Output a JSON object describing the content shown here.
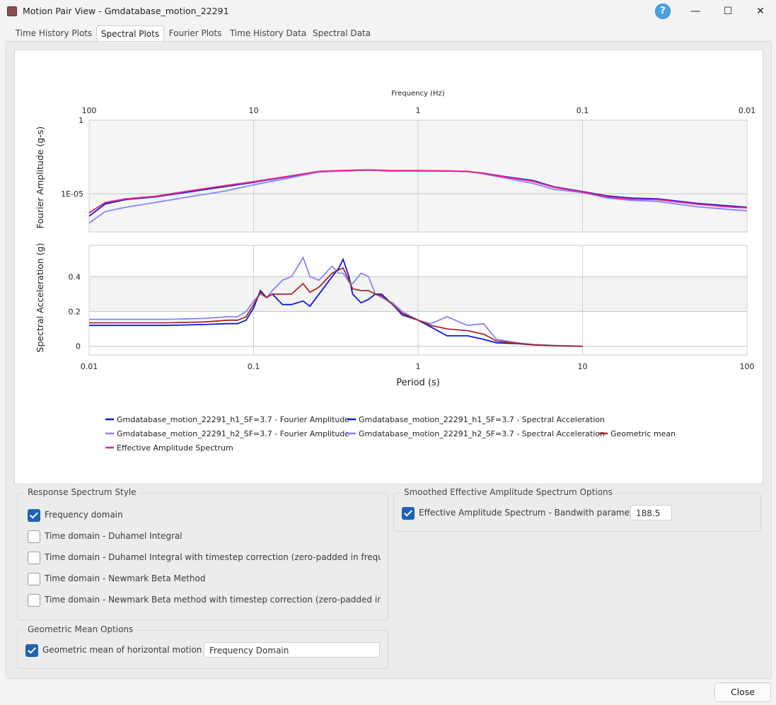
{
  "window": {
    "title": "Motion Pair View - Gmdatabase_motion_22291",
    "help": "?",
    "minimize": "—",
    "maximize": "☐",
    "close": "✕"
  },
  "tabs": [
    "Time History Plots",
    "Spectral Plots",
    "Fourier Plots",
    "Time History Data",
    "Spectral Data"
  ],
  "active_tab": "Spectral Plots",
  "chart_data": [
    {
      "type": "line",
      "xlabel": "Frequency (Hz)",
      "ylabel": "Fourier Amplitude (g-s)",
      "xscale": "log",
      "yscale": "log",
      "xlim": [
        100,
        0.01
      ],
      "x_ticks": [
        "100",
        "10",
        "1",
        "0.1",
        "0.01"
      ],
      "y_ticks": [
        "1",
        "1E-05"
      ],
      "series": [
        {
          "name": "Gmdatabase_motion_22291_h1_SF=3.7 - Fourier Amplitude",
          "color": "#0a1bd6",
          "x": [
            100,
            80,
            60,
            40,
            25,
            15,
            10,
            6,
            4,
            3,
            2,
            1.5,
            1,
            0.7,
            0.5,
            0.4,
            0.3,
            0.2,
            0.15,
            0.1,
            0.07,
            0.05,
            0.035,
            0.02,
            0.012,
            0.01
          ],
          "y": [
            3e-07,
            2e-06,
            4e-06,
            6e-06,
            1.3e-05,
            3e-05,
            6e-05,
            0.00015,
            0.0003,
            0.00035,
            0.0004,
            0.00035,
            0.00035,
            0.00035,
            0.00032,
            0.00025,
            0.00015,
            8e-05,
            3e-05,
            1.4e-05,
            7e-06,
            5e-06,
            4.5e-06,
            2.2e-06,
            1.4e-06,
            1.2e-06
          ]
        },
        {
          "name": "Gmdatabase_motion_22291_h2_SF=3.7 - Fourier Amplitude",
          "color": "#8484ff",
          "x": [
            100,
            80,
            60,
            40,
            25,
            15,
            10,
            6,
            4,
            3,
            2,
            1.5,
            1,
            0.7,
            0.5,
            0.4,
            0.3,
            0.2,
            0.15,
            0.1,
            0.07,
            0.05,
            0.035,
            0.02,
            0.012,
            0.01
          ],
          "y": [
            1e-07,
            6e-07,
            1.2e-06,
            2.5e-06,
            6e-06,
            1.5e-05,
            4e-05,
            0.00012,
            0.0003,
            0.00035,
            0.0004,
            0.00035,
            0.00035,
            0.00036,
            0.00033,
            0.00022,
            0.00012,
            5e-05,
            2e-05,
            1.2e-05,
            5e-06,
            3.5e-06,
            3e-06,
            1.3e-06,
            8e-07,
            7e-07
          ]
        },
        {
          "name": "Effective Amplitude Spectrum",
          "color": "#e8288a",
          "x": [
            100,
            80,
            60,
            40,
            25,
            15,
            10,
            6,
            4,
            3,
            2,
            1.5,
            1,
            0.7,
            0.5,
            0.4,
            0.3,
            0.2,
            0.15,
            0.1,
            0.07,
            0.05,
            0.035,
            0.02,
            0.012,
            0.01
          ],
          "y": [
            5e-07,
            2.5e-06,
            4.5e-06,
            6.5e-06,
            1.5e-05,
            3.5e-05,
            6.5e-05,
            0.00016,
            0.00033,
            0.00037,
            0.00042,
            0.00038,
            0.00037,
            0.00036,
            0.00033,
            0.00024,
            0.00014,
            7e-05,
            2.8e-05,
            1.3e-05,
            6e-06,
            4.3e-06,
            4e-06,
            1.9e-06,
            1.2e-06,
            1.1e-06
          ]
        }
      ]
    },
    {
      "type": "line",
      "xlabel": "Period (s)",
      "ylabel": "Spectral Acceleration (g)",
      "xscale": "log",
      "xlim": [
        0.01,
        100
      ],
      "ylim": [
        -0.05,
        0.58
      ],
      "x_ticks": [
        "0.01",
        "0.1",
        "1",
        "10",
        "100"
      ],
      "y_ticks": [
        "0",
        "0.2",
        "0.4"
      ],
      "series": [
        {
          "name": "Gmdatabase_motion_22291_h1_SF=3.7 - Spectral Acceleration",
          "color": "#0a1bd6",
          "x": [
            0.01,
            0.03,
            0.05,
            0.07,
            0.08,
            0.09,
            0.1,
            0.11,
            0.12,
            0.13,
            0.15,
            0.17,
            0.2,
            0.22,
            0.25,
            0.3,
            0.33,
            0.35,
            0.38,
            0.4,
            0.45,
            0.5,
            0.55,
            0.6,
            0.7,
            0.8,
            1,
            1.2,
            1.5,
            2,
            2.5,
            3,
            4,
            5,
            7,
            10
          ],
          "y": [
            0.12,
            0.12,
            0.125,
            0.13,
            0.13,
            0.15,
            0.22,
            0.32,
            0.28,
            0.3,
            0.24,
            0.24,
            0.26,
            0.23,
            0.3,
            0.4,
            0.45,
            0.5,
            0.4,
            0.3,
            0.25,
            0.27,
            0.3,
            0.3,
            0.24,
            0.18,
            0.15,
            0.11,
            0.06,
            0.06,
            0.04,
            0.02,
            0.015,
            0.008,
            0.003,
            0.0
          ]
        },
        {
          "name": "Gmdatabase_motion_22291_h2_SF=3.7 - Spectral Acceleration",
          "color": "#8484ff",
          "x": [
            0.01,
            0.03,
            0.05,
            0.07,
            0.08,
            0.09,
            0.1,
            0.11,
            0.12,
            0.13,
            0.15,
            0.17,
            0.2,
            0.22,
            0.25,
            0.3,
            0.33,
            0.35,
            0.38,
            0.4,
            0.45,
            0.5,
            0.55,
            0.6,
            0.7,
            0.8,
            1,
            1.2,
            1.5,
            2,
            2.5,
            3,
            4,
            5,
            7,
            10
          ],
          "y": [
            0.155,
            0.155,
            0.16,
            0.17,
            0.17,
            0.2,
            0.26,
            0.3,
            0.28,
            0.32,
            0.38,
            0.4,
            0.51,
            0.4,
            0.38,
            0.46,
            0.42,
            0.42,
            0.37,
            0.36,
            0.42,
            0.4,
            0.3,
            0.28,
            0.25,
            0.2,
            0.15,
            0.13,
            0.17,
            0.12,
            0.13,
            0.04,
            0.02,
            0.01,
            0.004,
            0.0
          ]
        },
        {
          "name": "Geometric mean",
          "color": "#a8272b",
          "x": [
            0.01,
            0.03,
            0.05,
            0.07,
            0.08,
            0.09,
            0.1,
            0.11,
            0.12,
            0.13,
            0.15,
            0.17,
            0.2,
            0.22,
            0.25,
            0.3,
            0.33,
            0.35,
            0.38,
            0.4,
            0.45,
            0.5,
            0.55,
            0.6,
            0.7,
            0.8,
            1,
            1.2,
            1.5,
            2,
            2.5,
            3,
            4,
            5,
            7,
            10
          ],
          "y": [
            0.135,
            0.135,
            0.14,
            0.15,
            0.15,
            0.17,
            0.24,
            0.31,
            0.28,
            0.3,
            0.3,
            0.3,
            0.36,
            0.31,
            0.34,
            0.42,
            0.44,
            0.45,
            0.38,
            0.33,
            0.32,
            0.32,
            0.3,
            0.29,
            0.24,
            0.19,
            0.15,
            0.12,
            0.1,
            0.09,
            0.07,
            0.03,
            0.017,
            0.009,
            0.003,
            0.0
          ]
        }
      ]
    }
  ],
  "legend": [
    {
      "label": "Gmdatabase_motion_22291_h1_SF=3.7 - Fourier Amplitude",
      "color": "#0a1bd6"
    },
    {
      "label": "Gmdatabase_motion_22291_h1_SF=3.7 - Spectral Acceleration",
      "color": "#0a1bd6"
    },
    {
      "label": "Gmdatabase_motion_22291_h2_SF=3.7 - Fourier Amplitude",
      "color": "#8484ff"
    },
    {
      "label": "Gmdatabase_motion_22291_h2_SF=3.7 - Spectral Acceleration",
      "color": "#8484ff"
    },
    {
      "label": "Geometric mean",
      "color": "#a8272b"
    },
    {
      "label": "Effective Amplitude Spectrum",
      "color": "#e8288a"
    }
  ],
  "response_spectrum": {
    "title": "Response Spectrum Style",
    "options": [
      {
        "label": "Frequency domain",
        "checked": true
      },
      {
        "label": "Time domain - Duhamel Integral",
        "checked": false
      },
      {
        "label": "Time domain - Duhamel Integral with timestep correction (zero-padded in frequency domain)",
        "checked": false
      },
      {
        "label": "Time domain - Newmark Beta Method",
        "checked": false
      },
      {
        "label": "Time domain - Newmark Beta method with timestep correction (zero-padded in frequency domain)",
        "checked": false
      }
    ]
  },
  "geometric_mean": {
    "title": "Geometric Mean Options",
    "label": "Geometric mean of horizontal motion pair",
    "checked": true,
    "value": "Frequency Domain"
  },
  "eas_options": {
    "title": "Smoothed Effective Amplitude Spectrum Options",
    "label": "Effective Amplitude Spectrum - Bandwith parameter (b):",
    "checked": true,
    "value": "188.5"
  },
  "close_button": "Close"
}
